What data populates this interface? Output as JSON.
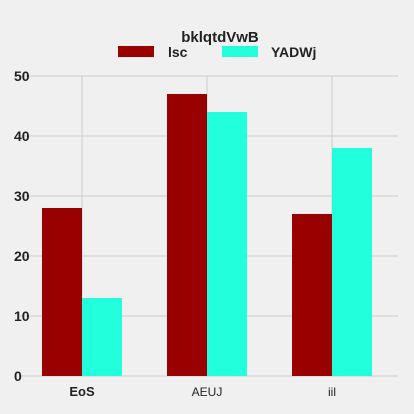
{
  "chart_data": {
    "type": "bar",
    "title": "",
    "xlabel": "",
    "ylabel": "",
    "legend_title": "bklqtdVwB",
    "legend_position": "top-center",
    "categories": [
      "EoS",
      "AEUJ",
      "iil"
    ],
    "series": [
      {
        "name": "lsc",
        "color": "#990000",
        "values": [
          28,
          47,
          27
        ]
      },
      {
        "name": "YADWj",
        "color": "#22ffdd",
        "values": [
          13,
          44,
          38
        ]
      }
    ],
    "ylim": [
      0,
      50
    ],
    "yticks": [
      0,
      10,
      20,
      30,
      40,
      50
    ],
    "grid": true
  }
}
